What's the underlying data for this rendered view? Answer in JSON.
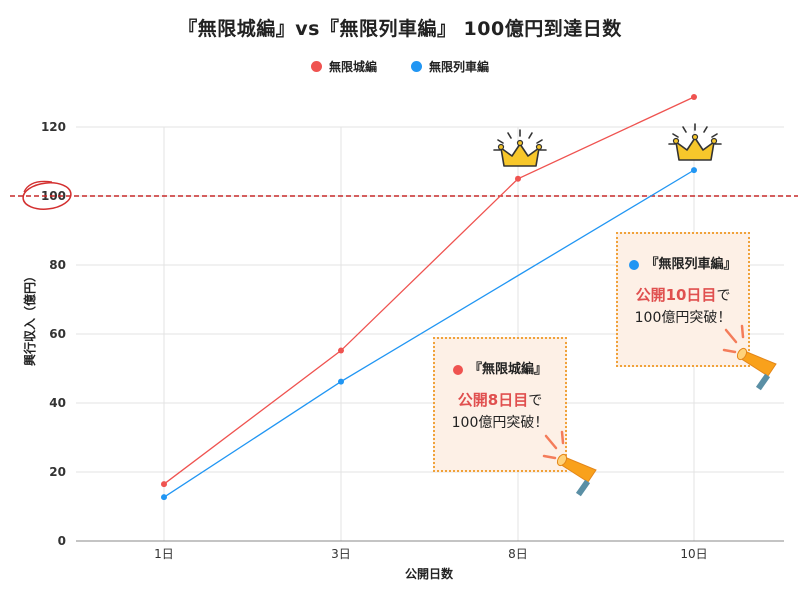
{
  "title": "『無限城編』vs『無限列車編』 100億円到達日数",
  "legend": [
    {
      "label": "無限城編",
      "color": "#ef5350"
    },
    {
      "label": "無限列車編",
      "color": "#2196f3"
    }
  ],
  "chart_data": {
    "type": "line",
    "categories": [
      "1日",
      "3日",
      "8日",
      "10日"
    ],
    "series": [
      {
        "name": "無限城編",
        "color": "#ef5350",
        "values": [
          16.5,
          55.2,
          105.0,
          128.7
        ]
      },
      {
        "name": "無限列車編",
        "color": "#2196f3",
        "values": [
          12.7,
          46.2,
          null,
          107.5
        ]
      }
    ],
    "xlabel": "公開日数",
    "ylabel": "興行収入（億円）",
    "ylim": [
      0,
      120
    ],
    "yticks": [
      0,
      20,
      40,
      60,
      80,
      100,
      120
    ],
    "grid": true,
    "legend_position": "top",
    "reference_line": {
      "value": 100,
      "color": "#c62828",
      "style": "dashed",
      "circled_tick": "100"
    }
  },
  "callouts": {
    "mugen_jo": {
      "series_label": "『無限城編』",
      "dot_color": "#ef5350",
      "emphasis": "公開8日目",
      "suffix": "で",
      "line2": "100億円突破！"
    },
    "mugen_ressha": {
      "series_label": "『無限列車編』",
      "dot_color": "#2196f3",
      "emphasis": "公開10日目",
      "suffix": "で",
      "line2": "100億円突破！"
    }
  },
  "icons": {
    "crown": "crown-icon",
    "megaphone": "megaphone-icon"
  }
}
